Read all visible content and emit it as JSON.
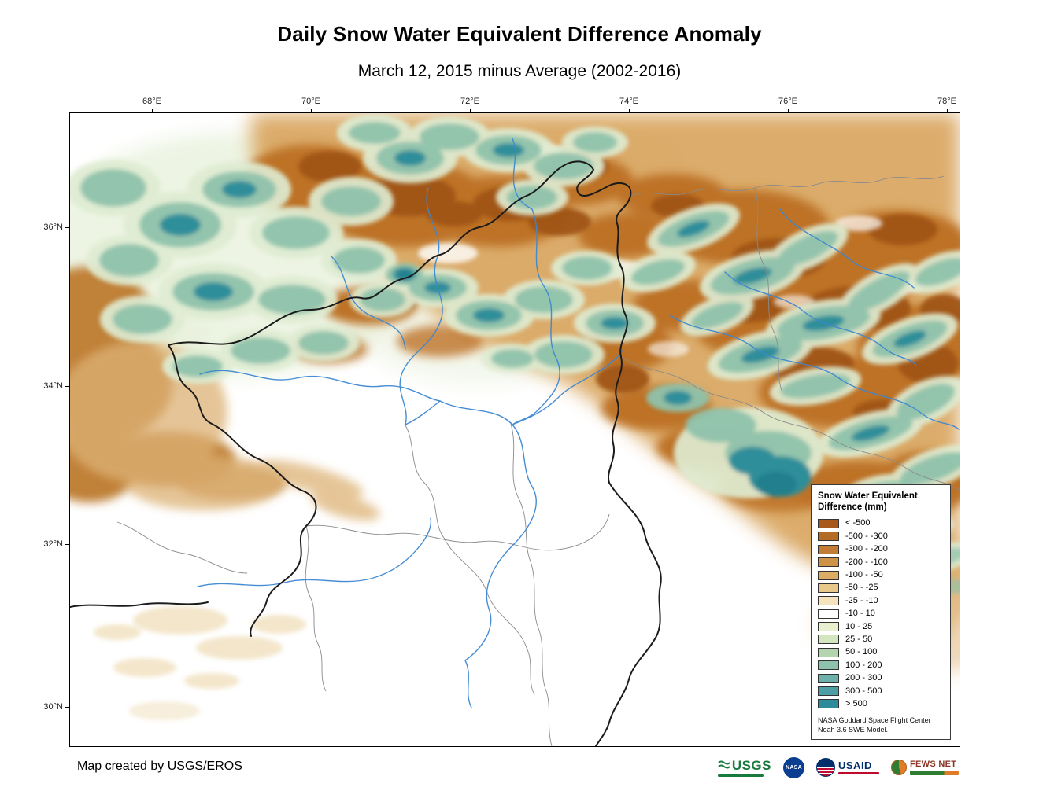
{
  "page": {
    "title": "Daily Snow Water Equivalent Difference Anomaly",
    "subtitle": "March 12, 2015 minus Average (2002-2016)"
  },
  "map": {
    "x_ticks": [
      "68°E",
      "70°E",
      "72°E",
      "74°E",
      "76°E",
      "78°E"
    ],
    "y_ticks": [
      "36°N",
      "34°N",
      "32°N",
      "30°N"
    ]
  },
  "legend": {
    "title_line1": "Snow Water Equivalent",
    "title_line2": "Difference (mm)",
    "entries": [
      {
        "label": "< -500",
        "color": "#a8581c"
      },
      {
        "label": "-500 - -300",
        "color": "#b56b28"
      },
      {
        "label": "-300 - -200",
        "color": "#c17d35"
      },
      {
        "label": "-200 - -100",
        "color": "#cf9347"
      },
      {
        "label": "-100 - -50",
        "color": "#ddad64"
      },
      {
        "label": "-50 - -25",
        "color": "#e9c88b"
      },
      {
        "label": "-25 - -10",
        "color": "#f4e3bc"
      },
      {
        "label": "-10 - 10",
        "color": "#ffffff"
      },
      {
        "label": "10 - 25",
        "color": "#e9f0cf"
      },
      {
        "label": "25 - 50",
        "color": "#d4e6c0"
      },
      {
        "label": "50 - 100",
        "color": "#b3d4af"
      },
      {
        "label": "100 - 200",
        "color": "#8fc2ac"
      },
      {
        "label": "200 - 300",
        "color": "#6db1aa"
      },
      {
        "label": "300 - 500",
        "color": "#4d9fa5"
      },
      {
        "label": "> 500",
        "color": "#2e8b9b"
      }
    ],
    "source_line1": "NASA Goddard Space Flight Center",
    "source_line2": "Noah 3.6 SWE Model."
  },
  "footer": {
    "credit": "Map created by USGS/EROS",
    "logos": [
      "USGS",
      "NASA",
      "USAID",
      "FEWS NET"
    ]
  }
}
